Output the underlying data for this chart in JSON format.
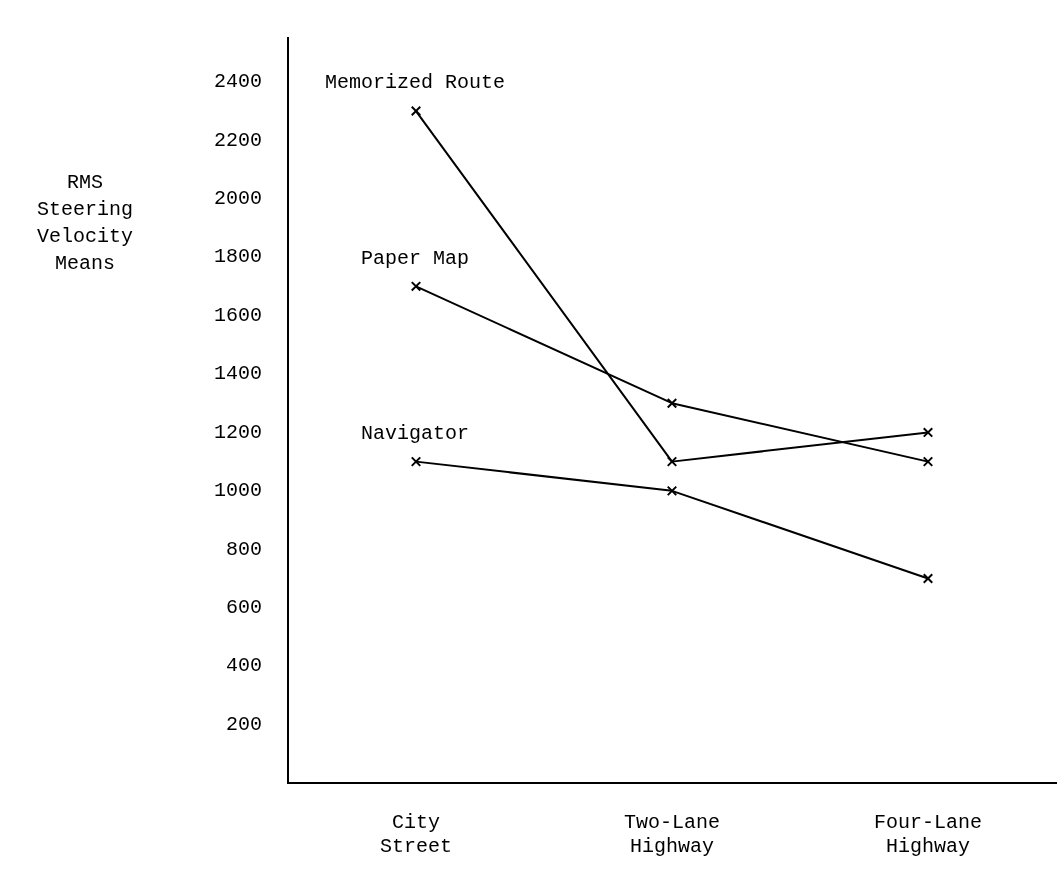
{
  "chart_data": {
    "type": "line",
    "ylabel": "RMS Steering Velocity Means",
    "categories": [
      "City Street",
      "Two-Lane Highway",
      "Four-Lane Highway"
    ],
    "ylim": [
      0,
      2550
    ],
    "yticks": [
      200,
      400,
      600,
      800,
      1000,
      1200,
      1400,
      1600,
      1800,
      2000,
      2200,
      2400
    ],
    "grid": false,
    "legend": false,
    "marker": "cross",
    "line_style": "solid",
    "series": [
      {
        "name": "Memorized Route",
        "color": "#000000",
        "values": [
          2300,
          1100,
          1200
        ]
      },
      {
        "name": "Paper Map",
        "color": "#000000",
        "values": [
          1700,
          1300,
          1100
        ]
      },
      {
        "name": "Navigator",
        "color": "#000000",
        "values": [
          1100,
          1000,
          700
        ]
      }
    ]
  }
}
